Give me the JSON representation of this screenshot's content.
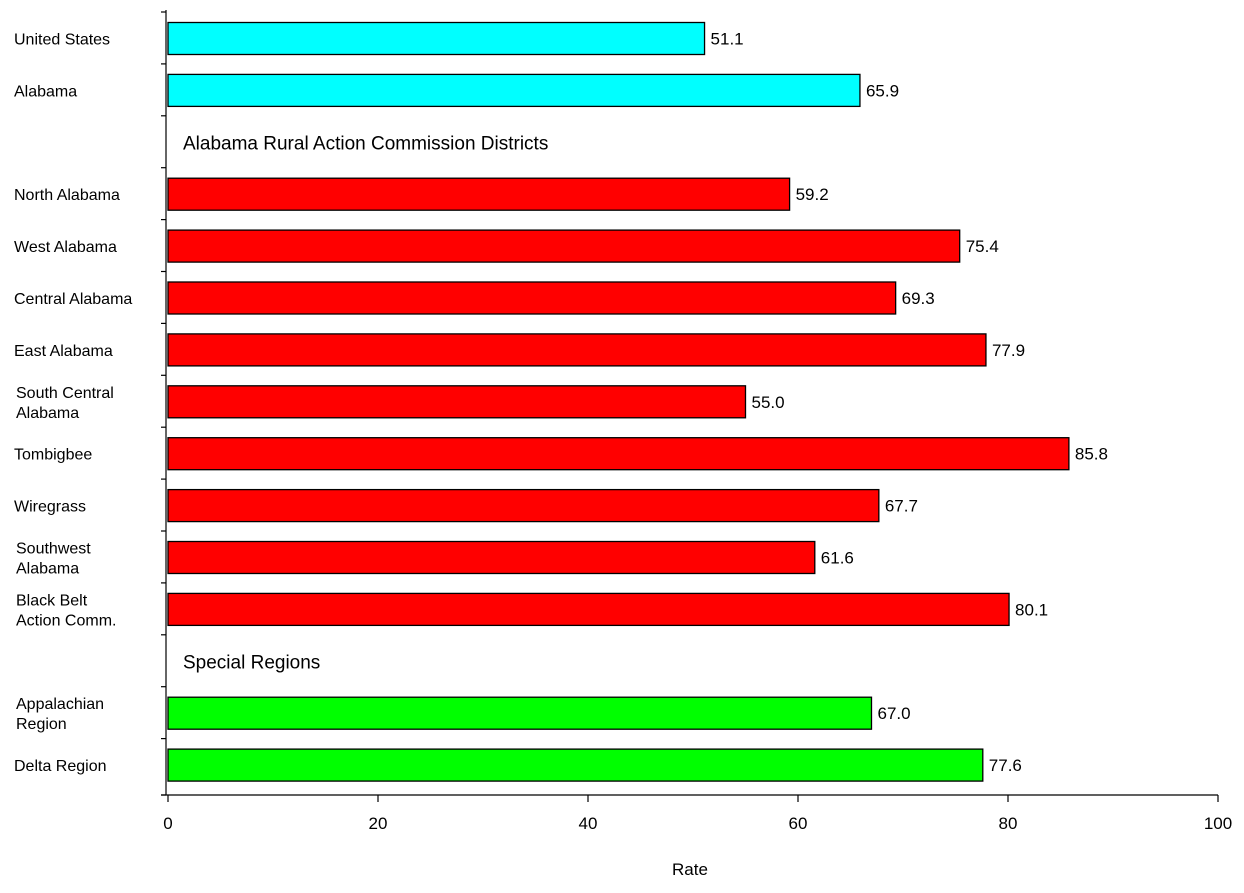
{
  "chart_data": {
    "type": "bar",
    "orientation": "horizontal",
    "title": "",
    "xlabel": "Rate",
    "ylabel": "",
    "xlim": [
      0,
      100
    ],
    "xticks": [
      0,
      20,
      40,
      60,
      80,
      100
    ],
    "grid": false,
    "legend": "none",
    "colors": {
      "national_state": "#00ffff",
      "districts": "#ff0000",
      "special": "#00ff00"
    },
    "rows": [
      {
        "kind": "bar",
        "category": [
          "United States"
        ],
        "value": 51.1,
        "value_label": "51.1",
        "group": "national_state"
      },
      {
        "kind": "bar",
        "category": [
          "Alabama"
        ],
        "value": 65.9,
        "value_label": "65.9",
        "group": "national_state"
      },
      {
        "kind": "section",
        "label": "Alabama Rural Action Commission Districts"
      },
      {
        "kind": "bar",
        "category": [
          "North Alabama"
        ],
        "value": 59.2,
        "value_label": "59.2",
        "group": "districts"
      },
      {
        "kind": "bar",
        "category": [
          "West Alabama"
        ],
        "value": 75.4,
        "value_label": "75.4",
        "group": "districts"
      },
      {
        "kind": "bar",
        "category": [
          "Central Alabama"
        ],
        "value": 69.3,
        "value_label": "69.3",
        "group": "districts"
      },
      {
        "kind": "bar",
        "category": [
          "East Alabama"
        ],
        "value": 77.9,
        "value_label": "77.9",
        "group": "districts"
      },
      {
        "kind": "bar",
        "category": [
          "South Central",
          "Alabama"
        ],
        "value": 55.0,
        "value_label": "55.0",
        "group": "districts"
      },
      {
        "kind": "bar",
        "category": [
          "Tombigbee"
        ],
        "value": 85.8,
        "value_label": "85.8",
        "group": "districts"
      },
      {
        "kind": "bar",
        "category": [
          "Wiregrass"
        ],
        "value": 67.7,
        "value_label": "67.7",
        "group": "districts"
      },
      {
        "kind": "bar",
        "category": [
          "Southwest",
          "Alabama"
        ],
        "value": 61.6,
        "value_label": "61.6",
        "group": "districts"
      },
      {
        "kind": "bar",
        "category": [
          "Black Belt",
          "Action Comm."
        ],
        "value": 80.1,
        "value_label": "80.1",
        "group": "districts"
      },
      {
        "kind": "section",
        "label": "Special Regions"
      },
      {
        "kind": "bar",
        "category": [
          "Appalachian",
          "Region"
        ],
        "value": 67.0,
        "value_label": "67.0",
        "group": "special"
      },
      {
        "kind": "bar",
        "category": [
          "Delta Region"
        ],
        "value": 77.6,
        "value_label": "77.6",
        "group": "special"
      }
    ]
  }
}
